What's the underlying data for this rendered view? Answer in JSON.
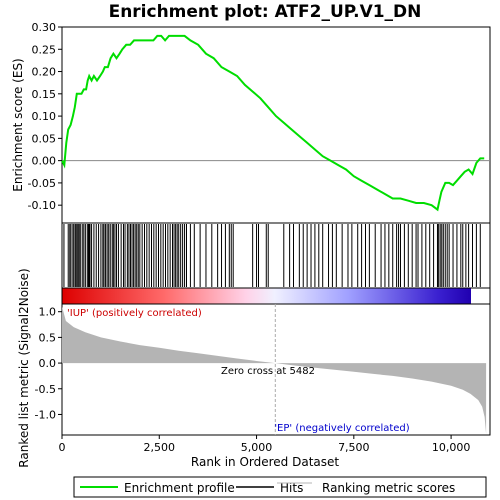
{
  "chart_data": {
    "type": "line",
    "title": "Enrichment plot: ATF2_UP.V1_DN",
    "enrichment_panel": {
      "ylabel": "Enrichment score (ES)",
      "ylim": [
        -0.14,
        0.3
      ],
      "yticks": [
        "0.30",
        "0.25",
        "0.20",
        "0.15",
        "0.10",
        "0.05",
        "0.00",
        "-0.05",
        "-0.10"
      ],
      "ytick_values": [
        0.3,
        0.25,
        0.2,
        0.15,
        0.1,
        0.05,
        0.0,
        -0.05,
        -0.1
      ],
      "color": "#00dd00",
      "profile": [
        [
          0,
          0.0
        ],
        [
          60,
          -0.01
        ],
        [
          110,
          0.04
        ],
        [
          160,
          0.07
        ],
        [
          220,
          0.08
        ],
        [
          280,
          0.1
        ],
        [
          330,
          0.12
        ],
        [
          380,
          0.15
        ],
        [
          440,
          0.15
        ],
        [
          500,
          0.15
        ],
        [
          560,
          0.16
        ],
        [
          620,
          0.16
        ],
        [
          660,
          0.18
        ],
        [
          700,
          0.19
        ],
        [
          760,
          0.18
        ],
        [
          820,
          0.19
        ],
        [
          900,
          0.18
        ],
        [
          980,
          0.19
        ],
        [
          1050,
          0.2
        ],
        [
          1100,
          0.21
        ],
        [
          1180,
          0.21
        ],
        [
          1250,
          0.23
        ],
        [
          1320,
          0.24
        ],
        [
          1400,
          0.23
        ],
        [
          1480,
          0.24
        ],
        [
          1550,
          0.25
        ],
        [
          1650,
          0.26
        ],
        [
          1750,
          0.26
        ],
        [
          1850,
          0.27
        ],
        [
          1950,
          0.27
        ],
        [
          2050,
          0.27
        ],
        [
          2150,
          0.27
        ],
        [
          2250,
          0.27
        ],
        [
          2350,
          0.27
        ],
        [
          2450,
          0.28
        ],
        [
          2550,
          0.28
        ],
        [
          2650,
          0.27
        ],
        [
          2750,
          0.28
        ],
        [
          2850,
          0.28
        ],
        [
          2950,
          0.28
        ],
        [
          3050,
          0.28
        ],
        [
          3150,
          0.28
        ],
        [
          3300,
          0.27
        ],
        [
          3500,
          0.26
        ],
        [
          3700,
          0.24
        ],
        [
          3900,
          0.23
        ],
        [
          4100,
          0.21
        ],
        [
          4300,
          0.2
        ],
        [
          4500,
          0.19
        ],
        [
          4700,
          0.17
        ],
        [
          4900,
          0.155
        ],
        [
          5100,
          0.14
        ],
        [
          5300,
          0.12
        ],
        [
          5500,
          0.1
        ],
        [
          5700,
          0.085
        ],
        [
          5900,
          0.07
        ],
        [
          6100,
          0.055
        ],
        [
          6300,
          0.04
        ],
        [
          6500,
          0.025
        ],
        [
          6700,
          0.01
        ],
        [
          6900,
          0.0
        ],
        [
          7100,
          -0.01
        ],
        [
          7300,
          -0.02
        ],
        [
          7500,
          -0.035
        ],
        [
          7700,
          -0.045
        ],
        [
          7900,
          -0.055
        ],
        [
          8100,
          -0.065
        ],
        [
          8300,
          -0.075
        ],
        [
          8500,
          -0.085
        ],
        [
          8700,
          -0.085
        ],
        [
          8900,
          -0.09
        ],
        [
          9100,
          -0.095
        ],
        [
          9300,
          -0.095
        ],
        [
          9500,
          -0.1
        ],
        [
          9650,
          -0.11
        ],
        [
          9700,
          -0.09
        ],
        [
          9750,
          -0.07
        ],
        [
          9850,
          -0.05
        ],
        [
          9950,
          -0.05
        ],
        [
          10050,
          -0.055
        ],
        [
          10150,
          -0.045
        ],
        [
          10250,
          -0.035
        ],
        [
          10350,
          -0.025
        ],
        [
          10450,
          -0.02
        ],
        [
          10550,
          -0.03
        ],
        [
          10650,
          -0.005
        ],
        [
          10750,
          0.005
        ],
        [
          10850,
          0.005
        ]
      ],
      "hits": [
        50,
        160,
        200,
        230,
        280,
        310,
        350,
        380,
        410,
        440,
        470,
        520,
        560,
        600,
        650,
        680,
        700,
        720,
        760,
        820,
        880,
        940,
        1000,
        1050,
        1080,
        1120,
        1160,
        1200,
        1240,
        1290,
        1320,
        1360,
        1400,
        1450,
        1520,
        1580,
        1620,
        1680,
        1720,
        1760,
        1800,
        1840,
        1880,
        1920,
        1960,
        2000,
        2060,
        2120,
        2180,
        2240,
        2300,
        2360,
        2420,
        2480,
        2540,
        2600,
        2660,
        2720,
        2780,
        2840,
        2880,
        2920,
        2960,
        3000,
        3050,
        3100,
        3150,
        3200,
        3300,
        3400,
        3550,
        3700,
        3850,
        4000,
        4100,
        4200,
        4300,
        4350,
        4400,
        4900,
        5000,
        5050,
        5250,
        5300,
        5700,
        5850,
        5950,
        6100,
        6200,
        6300,
        6400,
        6500,
        6600,
        6700,
        6850,
        6950,
        7050,
        7200,
        7350,
        7450,
        7600,
        7700,
        7800,
        7900,
        8050,
        8200,
        8300,
        8400,
        8500,
        8600,
        8650,
        8700,
        8800,
        8900,
        9000,
        9100,
        9150,
        9250,
        9350,
        9450,
        9550,
        9650,
        9680,
        9720,
        9760,
        9800,
        9850,
        9900,
        9950,
        10050,
        10150,
        10250,
        10300,
        10380,
        10450,
        10550,
        10650,
        10750
      ]
    },
    "rank_panel": {
      "ylabel": "Ranked list metric (Signal2Noise)",
      "xlabel": "Rank in Ordered Dataset",
      "ylim": [
        -1.4,
        1.15
      ],
      "yticks": [
        "1.0",
        "0.5",
        "0.0",
        "-0.5",
        "-1.0"
      ],
      "ytick_values": [
        1.0,
        0.5,
        0.0,
        -0.5,
        -1.0
      ],
      "xlim": [
        0,
        11000
      ],
      "xticks": [
        "0",
        "2,500",
        "5,000",
        "7,500",
        "10,000"
      ],
      "xtick_values": [
        0,
        2500,
        5000,
        7500,
        10000
      ],
      "n_genes": 10900,
      "metric_profile": [
        [
          0,
          1.1
        ],
        [
          100,
          0.82
        ],
        [
          300,
          0.7
        ],
        [
          600,
          0.6
        ],
        [
          1000,
          0.5
        ],
        [
          1500,
          0.42
        ],
        [
          2000,
          0.35
        ],
        [
          2500,
          0.3
        ],
        [
          3000,
          0.24
        ],
        [
          3500,
          0.19
        ],
        [
          4000,
          0.14
        ],
        [
          4500,
          0.09
        ],
        [
          5000,
          0.04
        ],
        [
          5482,
          0.0
        ],
        [
          6000,
          -0.05
        ],
        [
          6500,
          -0.09
        ],
        [
          7000,
          -0.13
        ],
        [
          7500,
          -0.17
        ],
        [
          8000,
          -0.21
        ],
        [
          8500,
          -0.25
        ],
        [
          9000,
          -0.3
        ],
        [
          9500,
          -0.36
        ],
        [
          10000,
          -0.44
        ],
        [
          10300,
          -0.52
        ],
        [
          10500,
          -0.6
        ],
        [
          10700,
          -0.72
        ],
        [
          10800,
          -0.85
        ],
        [
          10860,
          -1.05
        ],
        [
          10900,
          -1.38
        ]
      ],
      "color": "#b4b4b4",
      "annotations": {
        "positive": "'IUP' (positively correlated)",
        "negative": "'EP' (negatively correlated)",
        "zero_cross": "Zero cross at 5482"
      },
      "positive_color": "#cc0000",
      "negative_color": "#0000cc",
      "zero_cross_rank": 5482
    },
    "legend": [
      {
        "label": "Enrichment profile",
        "color": "#00dd00"
      },
      {
        "label": "Hits",
        "color": "#000000"
      },
      {
        "label": "Ranking metric scores",
        "color": "#b4b4b4"
      }
    ]
  }
}
